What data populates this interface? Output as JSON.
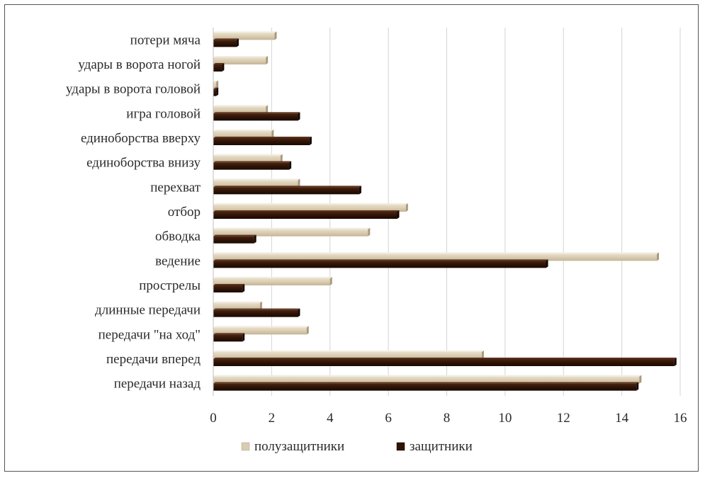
{
  "chart_data": {
    "type": "bar",
    "orientation": "horizontal",
    "categories": [
      "передачи назад",
      "передачи вперед",
      "передачи \"на ход\"",
      "длинные передачи",
      "прострелы",
      "ведение",
      "обводка",
      "отбор",
      "перехват",
      "единоборства внизу",
      "единоборства вверху",
      "игра головой",
      "удары в ворота головой",
      "удары в ворота ногой",
      "потери мяча"
    ],
    "series": [
      {
        "name": "полузащитники",
        "color": "#d9ccb2",
        "values": [
          14.6,
          9.2,
          3.2,
          1.6,
          4.0,
          15.2,
          5.3,
          6.6,
          2.9,
          2.3,
          2.0,
          1.8,
          0.1,
          1.8,
          2.1
        ]
      },
      {
        "name": "защитники",
        "color": "#2e1306",
        "values": [
          14.5,
          15.8,
          1.0,
          2.9,
          1.0,
          11.4,
          1.4,
          6.3,
          5.0,
          2.6,
          3.3,
          2.9,
          0.1,
          0.3,
          0.8
        ]
      }
    ],
    "xlim": [
      0,
      16
    ],
    "xticks": [
      "0",
      "2",
      "4",
      "6",
      "8",
      "10",
      "12",
      "14",
      "16"
    ],
    "grid": true,
    "legend_position": "bottom",
    "title": "",
    "xlabel": "",
    "ylabel": ""
  }
}
